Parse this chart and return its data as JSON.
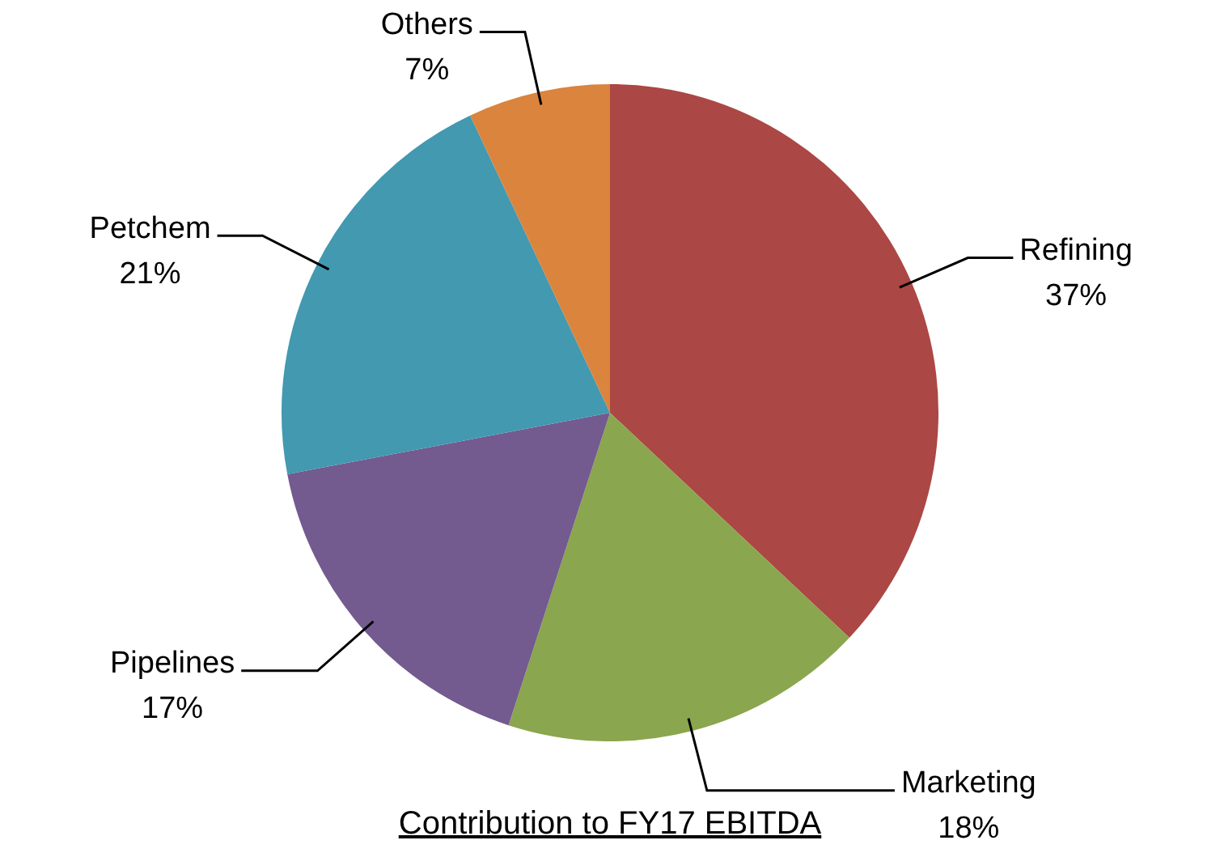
{
  "chart_data": {
    "type": "pie",
    "title": "Contribution to FY17 EBITDA",
    "categories": [
      "Refining",
      "Marketing",
      "Pipelines",
      "Petchem",
      "Others"
    ],
    "values": [
      37,
      18,
      17,
      21,
      7
    ],
    "value_labels": [
      "37%",
      "18%",
      "17%",
      "21%",
      "7%"
    ],
    "colors": [
      "#ab4744",
      "#8aa64e",
      "#735a8f",
      "#4299b0",
      "#db843d"
    ],
    "legend": false
  }
}
